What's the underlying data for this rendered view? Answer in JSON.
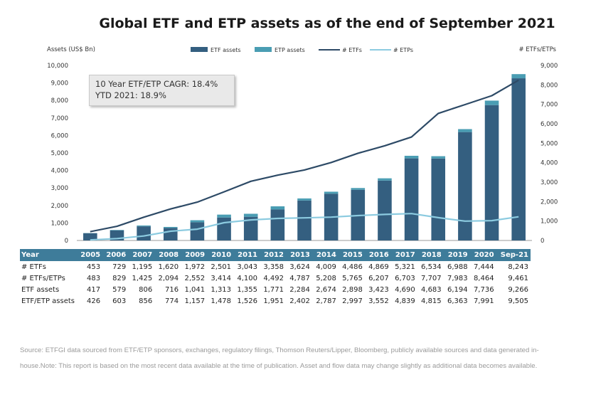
{
  "title": "Global ETF and ETP assets as of the end of September 2021",
  "annotation": {
    "line1": "10 Year ETF/ETP CAGR: 18.4%",
    "line2": "YTD 2021: 18.9%"
  },
  "source": "Source: ETFGI data sourced from ETF/ETP sponsors, exchanges, regulatory filings, Thomson Reuters/Lipper, Bloomberg, publicly available sources and data generated in-house.Note: This report is based on the most recent data available at the time of publication. Asset and flow data may change slightly as additional data becomes available.",
  "colors": {
    "etf_assets": "#345f80",
    "etp_assets": "#4a9db3",
    "num_etfs": "#2d4a66",
    "num_etps": "#8ccbe0",
    "table_header": "#3e7c9a"
  },
  "chart_data": {
    "type": "bar",
    "title": "Global ETF and ETP assets as of the end of September 2021",
    "ylabel": "Assets (US$ Bn)",
    "y2label": "# ETFs/ETPs",
    "ylim": [
      0,
      10000
    ],
    "y2lim": [
      0,
      9000
    ],
    "yticks": [
      "0",
      "1,000",
      "2,000",
      "3,000",
      "4,000",
      "5,000",
      "6,000",
      "7,000",
      "8,000",
      "9,000",
      "10,000"
    ],
    "y2ticks": [
      "0",
      "1,000",
      "2,000",
      "3,000",
      "4,000",
      "5,000",
      "6,000",
      "7,000",
      "8,000",
      "9,000"
    ],
    "grid": false,
    "legend_position": "top",
    "categories": [
      "2005",
      "2006",
      "2007",
      "2008",
      "2009",
      "2010",
      "2011",
      "2012",
      "2013",
      "2014",
      "2015",
      "2016",
      "2017",
      "2018",
      "2019",
      "2020",
      "Sep-21"
    ],
    "series": [
      {
        "name": "ETF assets",
        "kind": "stacked-bar",
        "axis": "left",
        "values": [
          417,
          579,
          806,
          716,
          1041,
          1313,
          1355,
          1771,
          2284,
          2674,
          2898,
          3423,
          4690,
          4683,
          6194,
          7736,
          9266
        ]
      },
      {
        "name": "ETP assets",
        "kind": "stacked-bar",
        "axis": "left",
        "values": [
          9,
          24,
          50,
          58,
          116,
          165,
          171,
          180,
          118,
          113,
          99,
          129,
          149,
          132,
          169,
          255,
          239
        ]
      },
      {
        "name": "# ETFs",
        "kind": "line",
        "axis": "right",
        "values": [
          453,
          729,
          1195,
          1620,
          1972,
          2501,
          3043,
          3358,
          3624,
          4009,
          4486,
          4869,
          5321,
          6534,
          6988,
          7444,
          8243
        ]
      },
      {
        "name": "# ETPs",
        "kind": "line",
        "axis": "right",
        "values": [
          30,
          100,
          230,
          474,
          580,
          913,
          1057,
          1134,
          1163,
          1199,
          1279,
          1338,
          1382,
          1173,
          995,
          1020,
          1218
        ]
      }
    ]
  },
  "table": {
    "header_label": "Year",
    "years": [
      "2005",
      "2006",
      "2007",
      "2008",
      "2009",
      "2010",
      "2011",
      "2012",
      "2013",
      "2014",
      "2015",
      "2016",
      "2017",
      "2018",
      "2019",
      "2020",
      "Sep-21"
    ],
    "rows": [
      {
        "label": "# ETFs",
        "values": [
          "453",
          "729",
          "1,195",
          "1,620",
          "1,972",
          "2,501",
          "3,043",
          "3,358",
          "3,624",
          "4,009",
          "4,486",
          "4,869",
          "5,321",
          "6,534",
          "6,988",
          "7,444",
          "8,243"
        ]
      },
      {
        "label": "# ETFs/ETPs",
        "values": [
          "483",
          "829",
          "1,425",
          "2,094",
          "2,552",
          "3,414",
          "4,100",
          "4,492",
          "4,787",
          "5,208",
          "5,765",
          "6,207",
          "6,703",
          "7,707",
          "7,983",
          "8,464",
          "9,461"
        ]
      },
      {
        "label": "ETF assets",
        "values": [
          "417",
          "579",
          "806",
          "716",
          "1,041",
          "1,313",
          "1,355",
          "1,771",
          "2,284",
          "2,674",
          "2,898",
          "3,423",
          "4,690",
          "4,683",
          "6,194",
          "7,736",
          "9,266"
        ]
      },
      {
        "label": "ETF/ETP assets",
        "values": [
          "426",
          "603",
          "856",
          "774",
          "1,157",
          "1,478",
          "1,526",
          "1,951",
          "2,402",
          "2,787",
          "2,997",
          "3,552",
          "4,839",
          "4,815",
          "6,363",
          "7,991",
          "9,505"
        ]
      }
    ]
  }
}
